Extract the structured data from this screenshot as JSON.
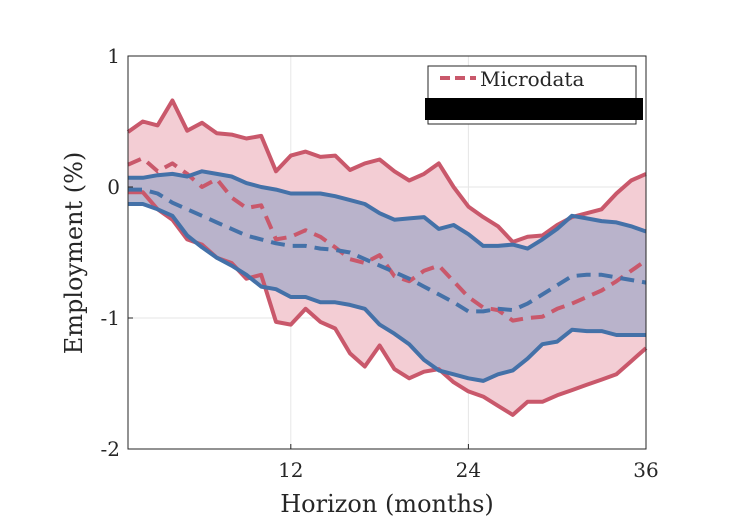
{
  "chart_data": {
    "type": "line",
    "title": "",
    "xlabel": "Horizon (months)",
    "ylabel": "Employment (%)",
    "xlim": [
      1,
      36
    ],
    "ylim": [
      -2,
      1
    ],
    "xticks": [
      12,
      24,
      36
    ],
    "yticks": [
      1,
      0,
      -1,
      -2
    ],
    "grid": true,
    "legend": {
      "position": "top-right",
      "entries": [
        "Microdata"
      ]
    },
    "colors": {
      "micro": "#c9586b",
      "micro_fill": "#f3cdd4",
      "second": "#4471a8",
      "second_fill": "#aeaec9"
    },
    "x": [
      1,
      2,
      3,
      4,
      5,
      6,
      7,
      8,
      9,
      10,
      11,
      12,
      13,
      14,
      15,
      16,
      17,
      18,
      19,
      20,
      21,
      22,
      23,
      24,
      25,
      26,
      27,
      28,
      29,
      30,
      31,
      32,
      33,
      34,
      35,
      36
    ],
    "series": [
      {
        "name": "Microdata",
        "style": "dashed",
        "band": true,
        "values": [
          0.17,
          0.22,
          0.12,
          0.18,
          0.1,
          0.0,
          0.06,
          -0.08,
          -0.16,
          -0.14,
          -0.4,
          -0.38,
          -0.33,
          -0.38,
          -0.46,
          -0.55,
          -0.58,
          -0.52,
          -0.68,
          -0.72,
          -0.64,
          -0.6,
          -0.72,
          -0.84,
          -0.92,
          -0.94,
          -1.02,
          -1.0,
          -0.99,
          -0.93,
          -0.89,
          -0.84,
          -0.79,
          -0.72,
          -0.64,
          -0.56
        ],
        "upper": [
          0.42,
          0.5,
          0.47,
          0.66,
          0.43,
          0.49,
          0.41,
          0.4,
          0.37,
          0.39,
          0.12,
          0.24,
          0.27,
          0.23,
          0.24,
          0.13,
          0.18,
          0.21,
          0.12,
          0.05,
          0.1,
          0.18,
          0.0,
          -0.15,
          -0.23,
          -0.3,
          -0.42,
          -0.38,
          -0.37,
          -0.29,
          -0.23,
          -0.2,
          -0.17,
          -0.05,
          0.05,
          0.1
        ],
        "lower": [
          -0.04,
          -0.04,
          -0.17,
          -0.25,
          -0.4,
          -0.44,
          -0.54,
          -0.58,
          -0.7,
          -0.67,
          -1.03,
          -1.05,
          -0.93,
          -1.03,
          -1.08,
          -1.27,
          -1.37,
          -1.21,
          -1.39,
          -1.46,
          -1.41,
          -1.39,
          -1.49,
          -1.56,
          -1.6,
          -1.67,
          -1.74,
          -1.64,
          -1.64,
          -1.59,
          -1.55,
          -1.51,
          -1.47,
          -1.43,
          -1.33,
          -1.23
        ]
      },
      {
        "name": "",
        "style": "dashed",
        "band": true,
        "values": [
          -0.02,
          -0.02,
          -0.05,
          -0.12,
          -0.17,
          -0.22,
          -0.27,
          -0.32,
          -0.37,
          -0.4,
          -0.43,
          -0.45,
          -0.45,
          -0.47,
          -0.48,
          -0.5,
          -0.55,
          -0.6,
          -0.65,
          -0.7,
          -0.76,
          -0.82,
          -0.88,
          -0.95,
          -0.95,
          -0.93,
          -0.94,
          -0.89,
          -0.82,
          -0.75,
          -0.68,
          -0.67,
          -0.67,
          -0.69,
          -0.71,
          -0.73
        ],
        "upper": [
          0.07,
          0.07,
          0.09,
          0.1,
          0.08,
          0.12,
          0.1,
          0.08,
          0.03,
          0.0,
          -0.02,
          -0.05,
          -0.05,
          -0.05,
          -0.07,
          -0.1,
          -0.13,
          -0.2,
          -0.25,
          -0.24,
          -0.23,
          -0.32,
          -0.29,
          -0.36,
          -0.45,
          -0.45,
          -0.44,
          -0.47,
          -0.4,
          -0.32,
          -0.22,
          -0.24,
          -0.26,
          -0.27,
          -0.3,
          -0.34
        ],
        "lower": [
          -0.13,
          -0.13,
          -0.17,
          -0.22,
          -0.37,
          -0.46,
          -0.54,
          -0.6,
          -0.67,
          -0.76,
          -0.78,
          -0.84,
          -0.84,
          -0.88,
          -0.88,
          -0.9,
          -0.93,
          -1.05,
          -1.12,
          -1.2,
          -1.32,
          -1.4,
          -1.43,
          -1.46,
          -1.48,
          -1.43,
          -1.4,
          -1.31,
          -1.2,
          -1.18,
          -1.09,
          -1.1,
          -1.1,
          -1.13,
          -1.13,
          -1.13
        ]
      }
    ]
  }
}
